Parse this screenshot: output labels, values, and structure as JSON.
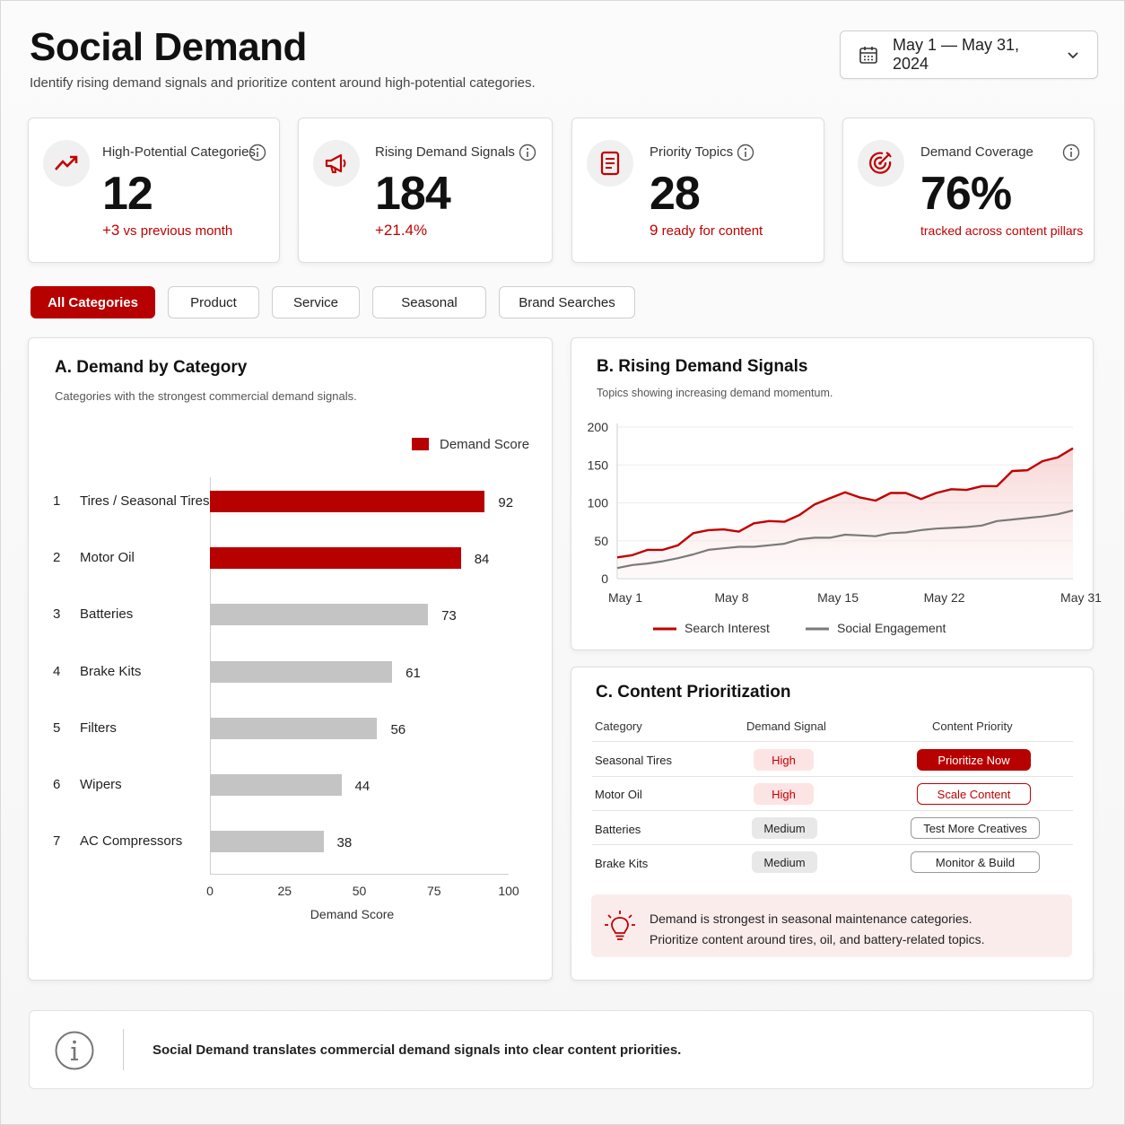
{
  "header": {
    "title": "Social Demand",
    "subtitle": "Identify rising demand signals and prioritize content around high-potential categories.",
    "date_range": "May 1 — May 31, 2024"
  },
  "kpis": [
    {
      "label": "High-Potential Categories",
      "value": "12",
      "delta_strong": "+3",
      "delta_text": " vs previous month",
      "icon": "trending-up-icon"
    },
    {
      "label": "Rising Demand Signals",
      "value": "184",
      "delta_strong": "+21.4%",
      "delta_text": "",
      "icon": "megaphone-icon"
    },
    {
      "label": "Priority Topics",
      "value": "28",
      "delta_strong": "9",
      "delta_text": " ready for content",
      "icon": "document-icon"
    },
    {
      "label": "Demand Coverage",
      "value": "76%",
      "delta_strong": "",
      "delta_text": "tracked across content pillars",
      "icon": "target-icon"
    }
  ],
  "filters": [
    "All Categories",
    "Product",
    "Service",
    "Seasonal",
    "Brand Searches"
  ],
  "colors": {
    "accent": "#b70000",
    "grey_bar": "#c4c4c4",
    "line_grey": "#7a7a7a"
  },
  "chart_data": [
    {
      "type": "bar",
      "title": "A. Demand by Category",
      "subtitle": "Categories with the strongest commercial demand signals.",
      "legend": "Demand Score",
      "categories": [
        "Tires / Seasonal Tires",
        "Motor Oil",
        "Batteries",
        "Brake Kits",
        "Filters",
        "Wipers",
        "AC Compressors"
      ],
      "ranks": [
        "1",
        "2",
        "3",
        "4",
        "5",
        "6",
        "7"
      ],
      "values": [
        92,
        84,
        73,
        61,
        56,
        44,
        38
      ],
      "highlight_count": 2,
      "xlabel": "Demand Score",
      "xlim": [
        0,
        100
      ],
      "xticks": [
        "0",
        "25",
        "50",
        "75",
        "100"
      ]
    },
    {
      "type": "line",
      "title": "B. Rising Demand Signals",
      "subtitle": "Topics showing increasing demand momentum.",
      "x_ticks": [
        "May 1",
        "May 8",
        "May 15",
        "May 22",
        "May 31"
      ],
      "y_ticks": [
        "0",
        "50",
        "100",
        "150",
        "200"
      ],
      "ylim": [
        0,
        200
      ],
      "x_days": [
        1,
        2,
        3,
        4,
        5,
        6,
        7,
        8,
        9,
        10,
        11,
        12,
        13,
        14,
        15,
        16,
        17,
        18,
        19,
        20,
        21,
        22,
        23,
        24,
        25,
        26,
        27,
        28,
        29,
        30,
        31
      ],
      "series": [
        {
          "name": "Search Interest",
          "values": [
            28,
            31,
            38,
            38,
            44,
            60,
            64,
            65,
            62,
            73,
            76,
            75,
            84,
            98,
            106,
            114,
            107,
            103,
            113,
            113,
            105,
            113,
            118,
            117,
            122,
            122,
            142,
            143,
            155,
            160,
            172
          ]
        },
        {
          "name": "Social Engagement",
          "values": [
            14,
            18,
            20,
            23,
            27,
            32,
            38,
            40,
            42,
            42,
            44,
            46,
            52,
            54,
            54,
            58,
            57,
            56,
            60,
            61,
            64,
            66,
            67,
            68,
            70,
            76,
            78,
            80,
            82,
            85,
            90
          ]
        }
      ]
    }
  ],
  "table": {
    "title": "C. Content Prioritization",
    "headers": [
      "Category",
      "Demand Signal",
      "Content Priority"
    ],
    "rows": [
      {
        "category": "Seasonal Tires",
        "signal": "High",
        "priority": "Prioritize Now"
      },
      {
        "category": "Motor Oil",
        "signal": "High",
        "priority": "Scale Content"
      },
      {
        "category": "Batteries",
        "signal": "Medium",
        "priority": "Test More Creatives"
      },
      {
        "category": "Brake Kits",
        "signal": "Medium",
        "priority": "Monitor & Build"
      }
    ]
  },
  "insight": {
    "line1": "Demand is strongest in seasonal maintenance categories.",
    "line2": "Prioritize content around tires, oil, and battery-related topics."
  },
  "footer": {
    "text": "Social Demand translates commercial demand signals into clear content priorities."
  }
}
